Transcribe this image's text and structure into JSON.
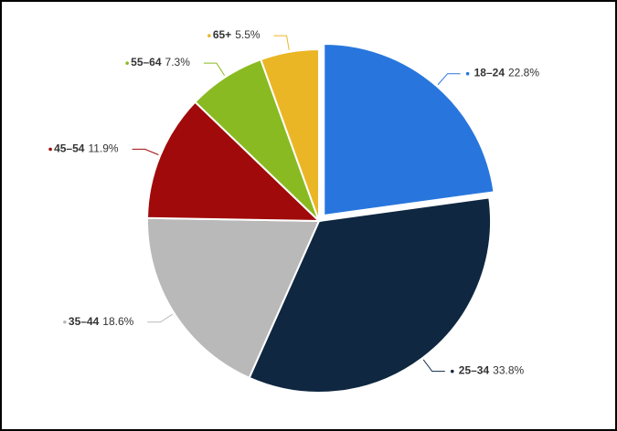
{
  "chart_data": {
    "type": "pie",
    "categories": [
      "18–24",
      "25–34",
      "35–44",
      "45–54",
      "55–64",
      "65+"
    ],
    "values": [
      22.8,
      33.8,
      18.6,
      11.9,
      7.3,
      5.5
    ],
    "value_labels": [
      "22.8%",
      "33.8%",
      "18.6%",
      "11.9%",
      "7.3%",
      "5.5%"
    ],
    "colors": [
      "#2876dd",
      "#0f2740",
      "#b9b9b9",
      "#a10a0a",
      "#8aba22",
      "#ebb625"
    ],
    "exploded": [
      0
    ]
  }
}
